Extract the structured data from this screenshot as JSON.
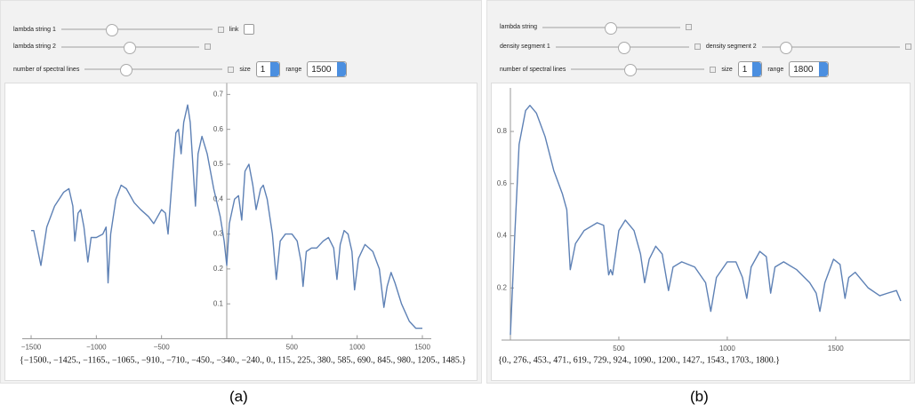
{
  "panels": [
    {
      "caption": "(a)",
      "controls": {
        "slider_labels": [
          "lambda string 1",
          "lambda string 2",
          "number of spectral lines"
        ],
        "link": "link",
        "size_label": "size",
        "size_value": "1",
        "range_label": "range",
        "range_value": "1500"
      },
      "list": "{−1500., −1425., −1165., −1065., −910., −710., −450., −340., −240., 0., 115., 225., 380., 585., 690., 845., 980., 1205., 1485.}"
    },
    {
      "caption": "(b)",
      "controls": {
        "slider_labels": [
          "lambda string",
          "density segment 1",
          "density segment 2",
          "number of spectral lines"
        ],
        "size_label": "size",
        "size_value": "1",
        "range_label": "range",
        "range_value": "1800"
      },
      "list": "{0., 276., 453., 471., 619., 729., 924., 1090., 1200., 1427., 1543., 1703., 1800.}"
    }
  ],
  "chart_data": [
    {
      "type": "line",
      "color": "#5e81b5",
      "x": [
        -1500,
        -1480,
        -1425,
        -1380,
        -1320,
        -1250,
        -1210,
        -1180,
        -1165,
        -1140,
        -1120,
        -1095,
        -1065,
        -1040,
        -1000,
        -950,
        -925,
        -910,
        -890,
        -850,
        -810,
        -770,
        -710,
        -660,
        -600,
        -560,
        -500,
        -470,
        -450,
        -420,
        -390,
        -370,
        -350,
        -330,
        -300,
        -280,
        -260,
        -240,
        -220,
        -190,
        -150,
        -100,
        -50,
        -20,
        0,
        20,
        60,
        90,
        115,
        140,
        170,
        200,
        225,
        260,
        280,
        310,
        350,
        380,
        410,
        450,
        500,
        540,
        570,
        585,
        610,
        650,
        690,
        740,
        780,
        820,
        845,
        870,
        900,
        930,
        960,
        980,
        1010,
        1060,
        1120,
        1170,
        1205,
        1230,
        1260,
        1290,
        1340,
        1400,
        1450,
        1500
      ],
      "values": [
        0.31,
        0.31,
        0.21,
        0.32,
        0.38,
        0.42,
        0.43,
        0.38,
        0.28,
        0.36,
        0.37,
        0.32,
        0.22,
        0.29,
        0.29,
        0.3,
        0.32,
        0.16,
        0.3,
        0.4,
        0.44,
        0.43,
        0.39,
        0.37,
        0.35,
        0.33,
        0.37,
        0.36,
        0.3,
        0.45,
        0.59,
        0.6,
        0.53,
        0.62,
        0.67,
        0.62,
        0.5,
        0.38,
        0.53,
        0.58,
        0.53,
        0.43,
        0.35,
        0.28,
        0.21,
        0.33,
        0.4,
        0.41,
        0.34,
        0.48,
        0.5,
        0.44,
        0.37,
        0.43,
        0.44,
        0.4,
        0.3,
        0.17,
        0.28,
        0.3,
        0.3,
        0.28,
        0.22,
        0.15,
        0.25,
        0.26,
        0.26,
        0.28,
        0.29,
        0.26,
        0.17,
        0.27,
        0.31,
        0.3,
        0.25,
        0.14,
        0.23,
        0.27,
        0.25,
        0.2,
        0.09,
        0.15,
        0.19,
        0.16,
        0.1,
        0.05,
        0.03,
        0.03
      ],
      "xlim": [
        -1500,
        1500
      ],
      "ylim": [
        0,
        0.72
      ],
      "xticks": [
        {
          "value": -1500,
          "label": "−1500"
        },
        {
          "value": -1000,
          "label": "−1000"
        },
        {
          "value": -500,
          "label": "−500"
        },
        500,
        1000,
        1500
      ],
      "yticks": [
        0.1,
        0.2,
        0.3,
        0.4,
        0.5,
        0.6,
        0.7
      ]
    },
    {
      "type": "line",
      "color": "#5e81b5",
      "x": [
        0,
        20,
        40,
        70,
        90,
        120,
        160,
        200,
        240,
        260,
        276,
        300,
        340,
        400,
        430,
        453,
        462,
        471,
        500,
        530,
        570,
        600,
        619,
        640,
        670,
        700,
        729,
        750,
        790,
        850,
        900,
        924,
        950,
        1000,
        1040,
        1070,
        1090,
        1110,
        1150,
        1180,
        1200,
        1220,
        1260,
        1320,
        1380,
        1410,
        1427,
        1450,
        1490,
        1520,
        1543,
        1560,
        1590,
        1650,
        1703,
        1740,
        1780,
        1800
      ],
      "values": [
        0.02,
        0.4,
        0.75,
        0.88,
        0.9,
        0.87,
        0.78,
        0.65,
        0.56,
        0.5,
        0.27,
        0.37,
        0.42,
        0.45,
        0.44,
        0.25,
        0.27,
        0.25,
        0.42,
        0.46,
        0.42,
        0.33,
        0.22,
        0.31,
        0.36,
        0.33,
        0.19,
        0.28,
        0.3,
        0.28,
        0.22,
        0.11,
        0.24,
        0.3,
        0.3,
        0.24,
        0.16,
        0.28,
        0.34,
        0.32,
        0.18,
        0.28,
        0.3,
        0.27,
        0.22,
        0.18,
        0.11,
        0.22,
        0.31,
        0.29,
        0.16,
        0.24,
        0.26,
        0.2,
        0.17,
        0.18,
        0.19,
        0.15
      ],
      "xlim": [
        0,
        1800
      ],
      "ylim": [
        0,
        0.95
      ],
      "xticks": [
        500,
        1000,
        1500
      ],
      "yticks": [
        0.2,
        0.4,
        0.6,
        0.8
      ]
    }
  ]
}
